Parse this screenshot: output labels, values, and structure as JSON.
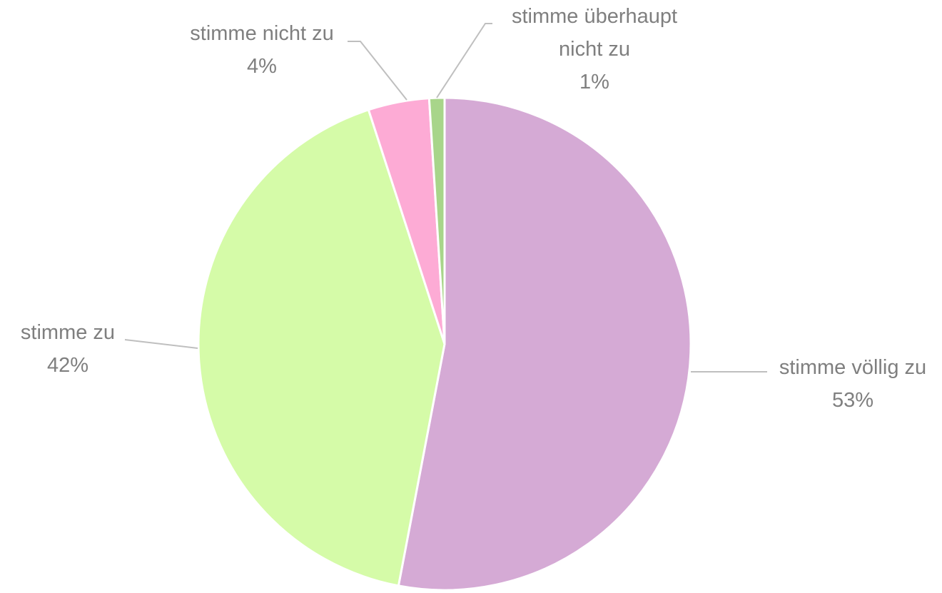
{
  "chart_data": {
    "type": "pie",
    "categories": [
      "stimme völlig zu",
      "stimme zu",
      "stimme nicht zu",
      "stimme überhaupt nicht zu"
    ],
    "values": [
      53,
      42,
      4,
      1
    ],
    "value_labels": [
      "53%",
      "42%",
      "4%",
      "1%"
    ],
    "colors": [
      "#d5aad5",
      "#d5fba8",
      "#fdabd5",
      "#a8d58a"
    ]
  }
}
